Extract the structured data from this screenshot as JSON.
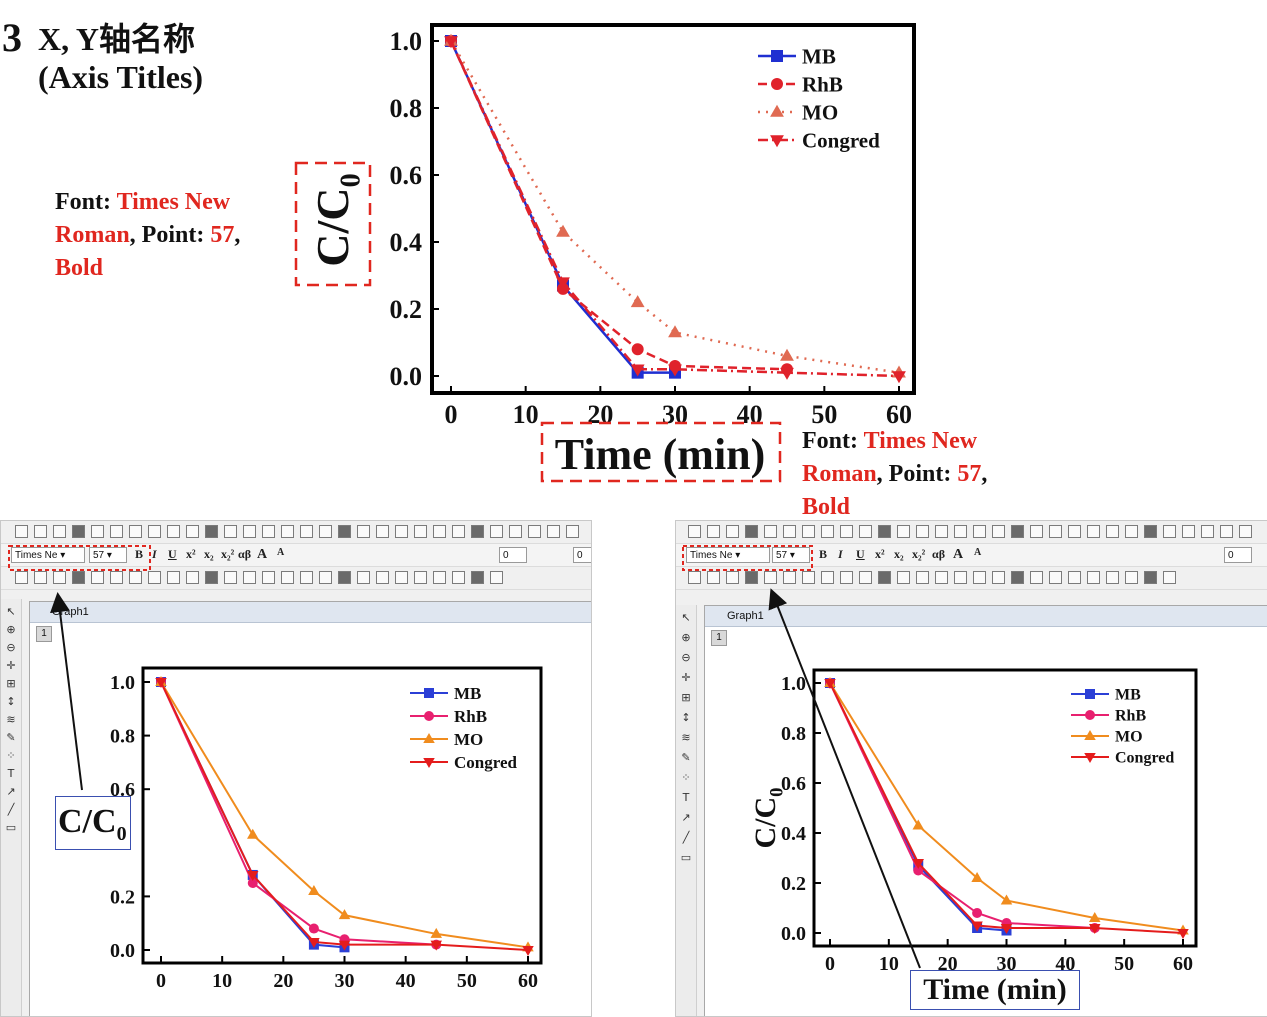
{
  "heading": {
    "number": "3",
    "line1": "X, Y轴名称",
    "line2": "(Axis Titles)"
  },
  "notes": {
    "left": {
      "p1": "Font: ",
      "font": "Times New Roman",
      "p2": ", Point: ",
      "point": "57",
      "p3": ",",
      "style": "Bold"
    },
    "right": {
      "p1": "Font: ",
      "font": "Times New Roman",
      "p2": ", Point: ",
      "point": "57",
      "p3": ",",
      "style": "Bold"
    }
  },
  "toolbar": {
    "font_value": "Times Ne",
    "size_value": "57",
    "bold_label": "B",
    "italic_label": "I",
    "underline_label": "U",
    "superscript_label": "x²",
    "subscript_label": "x₂",
    "supsub_label": "x₂²",
    "greek_label": "αβ",
    "grow_label": "A",
    "shrink_label": "A",
    "line_width_value": "0",
    "fill_value": "0"
  },
  "graph_window": {
    "title": "Graph1",
    "layer": "1"
  },
  "axis_title_boxes": {
    "y_small": "C/C",
    "y_small_sub": "0",
    "x_small": "Time (min)"
  },
  "colors": {
    "MB": "#1f2fd1",
    "RhB": "#e0222b",
    "MO": "#e06a52",
    "Congred": "#e0222b",
    "MB_ui": "#2b3fd6",
    "RhB_ui": "#e8206f",
    "MO_ui": "#f08c1e",
    "Congred_ui": "#e41c1c",
    "highlight": "#e0271f"
  },
  "chart_data": [
    {
      "id": "main",
      "type": "line",
      "xlabel": "Time (min)",
      "ylabel": "C/C",
      "ylabel_sub": "0",
      "xlim": [
        0,
        60
      ],
      "ylim": [
        0,
        1
      ],
      "xticks": [
        0,
        10,
        20,
        30,
        40,
        50,
        60
      ],
      "yticks": [
        0.0,
        0.2,
        0.4,
        0.6,
        0.8,
        1.0
      ],
      "legend": "top-right",
      "series": [
        {
          "name": "MB",
          "x": [
            0,
            15,
            25,
            30
          ],
          "y": [
            1.0,
            0.27,
            0.01,
            0.01
          ],
          "color": "#1f2fd1",
          "marker": "square",
          "dash": ""
        },
        {
          "name": "RhB",
          "x": [
            0,
            15,
            25,
            30,
            45
          ],
          "y": [
            1.0,
            0.26,
            0.08,
            0.03,
            0.02
          ],
          "color": "#e0222b",
          "marker": "circle",
          "dash": "9,5"
        },
        {
          "name": "MO",
          "x": [
            0,
            15,
            25,
            30,
            45,
            60
          ],
          "y": [
            1.0,
            0.43,
            0.22,
            0.13,
            0.06,
            0.01
          ],
          "color": "#e06a52",
          "marker": "triangle",
          "dash": "2,6"
        },
        {
          "name": "Congred",
          "x": [
            0,
            15,
            25,
            30,
            45,
            60
          ],
          "y": [
            1.0,
            0.28,
            0.02,
            0.02,
            0.01,
            0.0
          ],
          "color": "#e0222b",
          "marker": "triangle-down",
          "dash": "10,4,2,4"
        }
      ]
    },
    {
      "id": "left",
      "type": "line",
      "xlabel": "",
      "ylabel": "",
      "xlim": [
        0,
        60
      ],
      "ylim": [
        0,
        1
      ],
      "xticks": [
        0,
        10,
        20,
        30,
        40,
        50,
        60
      ],
      "yticks": [
        0.0,
        0.2,
        0.6,
        0.8,
        1.0
      ],
      "legend": "top-right",
      "series": [
        {
          "name": "MB",
          "x": [
            0,
            15,
            25,
            30
          ],
          "y": [
            1.0,
            0.28,
            0.02,
            0.01
          ],
          "color": "#2b3fd6",
          "marker": "square",
          "dash": ""
        },
        {
          "name": "RhB",
          "x": [
            0,
            15,
            25,
            30,
            45
          ],
          "y": [
            1.0,
            0.25,
            0.08,
            0.04,
            0.02
          ],
          "color": "#e8206f",
          "marker": "circle",
          "dash": ""
        },
        {
          "name": "MO",
          "x": [
            0,
            15,
            25,
            30,
            45,
            60
          ],
          "y": [
            1.0,
            0.43,
            0.22,
            0.13,
            0.06,
            0.01
          ],
          "color": "#f08c1e",
          "marker": "triangle",
          "dash": ""
        },
        {
          "name": "Congred",
          "x": [
            0,
            15,
            25,
            30,
            45,
            60
          ],
          "y": [
            1.0,
            0.28,
            0.03,
            0.02,
            0.02,
            0.0
          ],
          "color": "#e41c1c",
          "marker": "triangle-down",
          "dash": ""
        }
      ]
    },
    {
      "id": "right",
      "type": "line",
      "xlabel": "",
      "ylabel": "C/C",
      "ylabel_sub": "0",
      "xlim": [
        0,
        60
      ],
      "ylim": [
        0,
        1
      ],
      "xticks": [
        0,
        10,
        20,
        30,
        40,
        50,
        60
      ],
      "yticks": [
        0.0,
        0.2,
        0.4,
        0.6,
        0.8,
        1.0
      ],
      "legend": "top-right",
      "series": [
        {
          "name": "MB",
          "x": [
            0,
            15,
            25,
            30
          ],
          "y": [
            1.0,
            0.27,
            0.02,
            0.01
          ],
          "color": "#2b3fd6",
          "marker": "square",
          "dash": ""
        },
        {
          "name": "RhB",
          "x": [
            0,
            15,
            25,
            30,
            45
          ],
          "y": [
            1.0,
            0.25,
            0.08,
            0.04,
            0.02
          ],
          "color": "#e8206f",
          "marker": "circle",
          "dash": ""
        },
        {
          "name": "MO",
          "x": [
            0,
            15,
            25,
            30,
            45,
            60
          ],
          "y": [
            1.0,
            0.43,
            0.22,
            0.13,
            0.06,
            0.01
          ],
          "color": "#f08c1e",
          "marker": "triangle",
          "dash": ""
        },
        {
          "name": "Congred",
          "x": [
            0,
            15,
            25,
            30,
            45,
            60
          ],
          "y": [
            1.0,
            0.28,
            0.03,
            0.02,
            0.02,
            0.0
          ],
          "color": "#e41c1c",
          "marker": "triangle-down",
          "dash": ""
        }
      ]
    }
  ]
}
